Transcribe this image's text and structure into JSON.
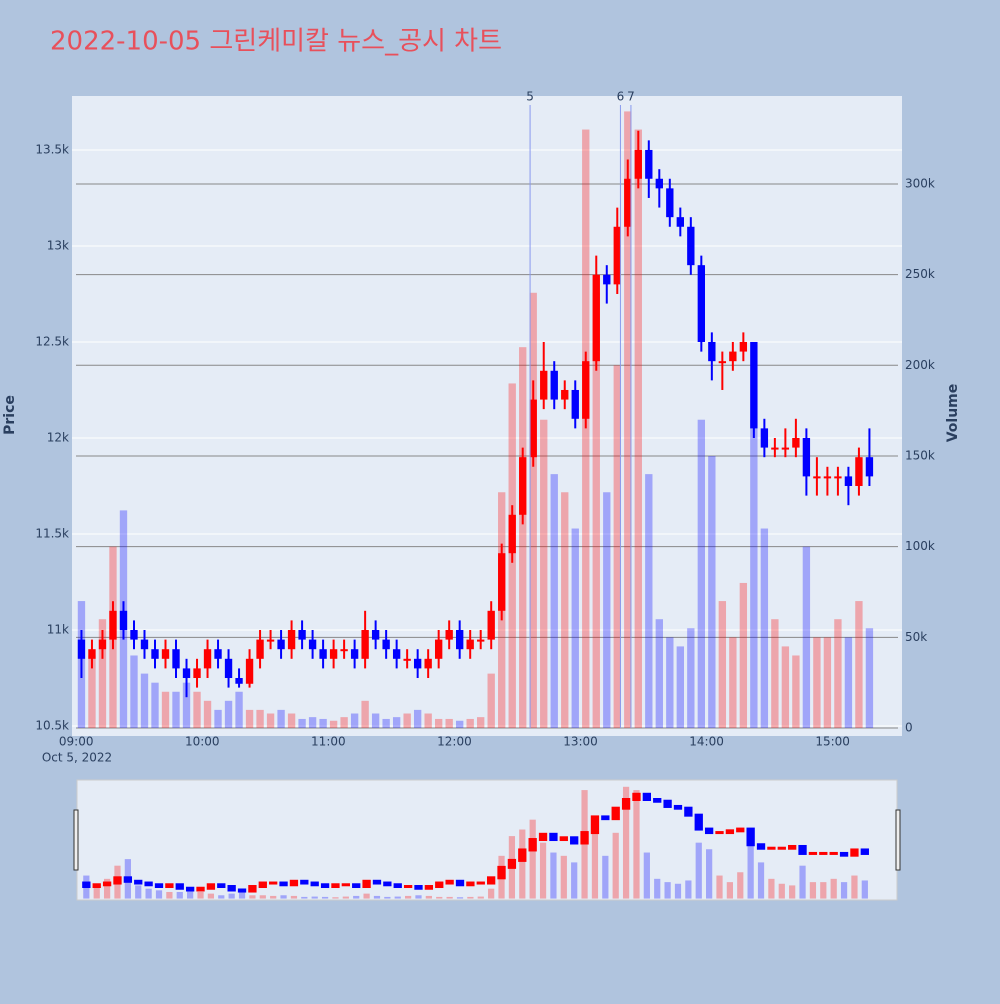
{
  "chart_data": {
    "type": "candlestick",
    "title": "2022-10-05 그린케미칼 뉴스_공시 차트",
    "y_label": "Price",
    "y2_label": "Volume",
    "x_sublabel": "Oct 5, 2022",
    "increasing_color": "#ff0000",
    "decreasing_color": "#0000ff",
    "title_color": "#e8505b",
    "x": [
      "09:00",
      "09:05",
      "09:10",
      "09:15",
      "09:20",
      "09:25",
      "09:30",
      "09:35",
      "09:40",
      "09:45",
      "09:50",
      "09:55",
      "10:00",
      "10:05",
      "10:10",
      "10:15",
      "10:20",
      "10:25",
      "10:30",
      "10:35",
      "10:40",
      "10:45",
      "10:50",
      "10:55",
      "11:00",
      "11:05",
      "11:10",
      "11:15",
      "11:20",
      "11:25",
      "11:30",
      "11:35",
      "11:40",
      "11:45",
      "11:50",
      "11:55",
      "12:00",
      "12:05",
      "12:10",
      "12:15",
      "12:20",
      "12:25",
      "12:30",
      "12:35",
      "12:40",
      "12:45",
      "12:50",
      "12:55",
      "13:00",
      "13:05",
      "13:10",
      "13:15",
      "13:20",
      "13:25",
      "13:30",
      "13:35",
      "13:40",
      "13:45",
      "13:50",
      "13:55",
      "14:00",
      "14:05",
      "14:10",
      "14:15",
      "14:20",
      "14:25",
      "14:30",
      "14:35",
      "14:40",
      "14:45",
      "14:50",
      "14:55",
      "15:00",
      "15:05",
      "15:10",
      "15:15"
    ],
    "open": [
      10950,
      10850,
      10900,
      10950,
      11100,
      11000,
      10950,
      10900,
      10850,
      10900,
      10800,
      10750,
      10800,
      10900,
      10850,
      10750,
      10720,
      10850,
      10950,
      10950,
      10900,
      11000,
      10950,
      10900,
      10850,
      10900,
      10900,
      10850,
      11000,
      10950,
      10900,
      10850,
      10850,
      10800,
      10850,
      10950,
      11000,
      10900,
      10950,
      10950,
      11100,
      11400,
      11600,
      11900,
      12200,
      12350,
      12200,
      12250,
      12100,
      12400,
      12850,
      12800,
      13100,
      13350,
      13500,
      13350,
      13300,
      13150,
      13100,
      12900,
      12500,
      12400,
      12400,
      12450,
      12500,
      12050,
      11950,
      11950,
      11950,
      12000,
      11800,
      11800,
      11800,
      11800,
      11750,
      11900
    ],
    "high": [
      11000,
      10950,
      11000,
      11150,
      11150,
      11050,
      11000,
      10950,
      10950,
      10950,
      10850,
      10850,
      10950,
      10950,
      10900,
      10800,
      10900,
      11000,
      11000,
      11000,
      11050,
      11050,
      11000,
      10950,
      10950,
      10950,
      10950,
      11100,
      11050,
      11000,
      10950,
      10900,
      10900,
      10900,
      11000,
      11050,
      11050,
      11000,
      11000,
      11150,
      11450,
      11650,
      11950,
      12300,
      12500,
      12400,
      12300,
      12300,
      12450,
      12950,
      12900,
      13200,
      13450,
      13600,
      13550,
      13400,
      13350,
      13200,
      13150,
      12950,
      12550,
      12450,
      12500,
      12550,
      12500,
      12100,
      12000,
      12050,
      12100,
      12050,
      11900,
      11850,
      11850,
      11850,
      11950,
      12050
    ],
    "low": [
      10750,
      10800,
      10850,
      10900,
      10950,
      10900,
      10850,
      10800,
      10800,
      10750,
      10650,
      10700,
      10750,
      10800,
      10700,
      10700,
      10700,
      10800,
      10900,
      10850,
      10850,
      10900,
      10850,
      10800,
      10800,
      10850,
      10800,
      10800,
      10900,
      10850,
      10800,
      10800,
      10750,
      10750,
      10800,
      10900,
      10850,
      10850,
      10900,
      10900,
      11050,
      11350,
      11550,
      11850,
      12150,
      12150,
      12150,
      12050,
      12050,
      12350,
      12700,
      12750,
      13050,
      13300,
      13250,
      13200,
      13100,
      13050,
      12850,
      12450,
      12300,
      12250,
      12350,
      12400,
      12000,
      11900,
      11900,
      11900,
      11900,
      11700,
      11700,
      11700,
      11700,
      11650,
      11700,
      11750
    ],
    "close": [
      10850,
      10900,
      10950,
      11100,
      11000,
      10950,
      10900,
      10850,
      10900,
      10800,
      10750,
      10800,
      10900,
      10850,
      10750,
      10720,
      10850,
      10950,
      10950,
      10900,
      11000,
      10950,
      10900,
      10850,
      10900,
      10900,
      10850,
      11000,
      10950,
      10900,
      10850,
      10850,
      10800,
      10850,
      10950,
      11000,
      10900,
      10950,
      10950,
      11100,
      11400,
      11600,
      11900,
      12200,
      12350,
      12200,
      12250,
      12100,
      12400,
      12850,
      12800,
      13100,
      13350,
      13500,
      13350,
      13300,
      13150,
      13100,
      12900,
      12500,
      12400,
      12400,
      12450,
      12500,
      12050,
      11950,
      11950,
      11950,
      12000,
      11800,
      11800,
      11800,
      11800,
      11750,
      11900,
      11800
    ],
    "volume": [
      70000,
      40000,
      60000,
      100000,
      120000,
      40000,
      30000,
      25000,
      20000,
      20000,
      25000,
      20000,
      15000,
      10000,
      15000,
      20000,
      10000,
      10000,
      8000,
      10000,
      8000,
      5000,
      6000,
      5000,
      4000,
      6000,
      8000,
      15000,
      8000,
      5000,
      6000,
      8000,
      10000,
      8000,
      5000,
      5000,
      4000,
      5000,
      6000,
      30000,
      130000,
      190000,
      210000,
      240000,
      170000,
      140000,
      130000,
      110000,
      330000,
      240000,
      130000,
      200000,
      340000,
      330000,
      140000,
      60000,
      50000,
      45000,
      55000,
      170000,
      150000,
      70000,
      50000,
      80000,
      170000,
      110000,
      60000,
      45000,
      40000,
      100000,
      50000,
      50000,
      60000,
      50000,
      70000,
      55000
    ],
    "xlim": [
      "08:58",
      "15:33"
    ],
    "xticks": [
      "09:00",
      "10:00",
      "11:00",
      "12:00",
      "13:00",
      "14:00",
      "15:00"
    ],
    "ylim": [
      10448,
      13781
    ],
    "yticks": [
      {
        "value": 10500,
        "label": "10.5k"
      },
      {
        "value": 11000,
        "label": "11k"
      },
      {
        "value": 11500,
        "label": "11.5k"
      },
      {
        "value": 12000,
        "label": "12k"
      },
      {
        "value": 12500,
        "label": "12.5k"
      },
      {
        "value": 13000,
        "label": "13k"
      },
      {
        "value": 13500,
        "label": "13.5k"
      }
    ],
    "y2lim": [
      -4400,
      348500
    ],
    "y2ticks": [
      0,
      {
        "value": 50000,
        "label": "50k"
      },
      {
        "value": 100000,
        "label": "100k"
      },
      {
        "value": 150000,
        "label": "150k"
      },
      {
        "value": 200000,
        "label": "200k"
      },
      {
        "value": 250000,
        "label": "250k"
      },
      {
        "value": 300000,
        "label": "300k"
      }
    ],
    "annotations": [
      {
        "x": "12:36",
        "text": "5"
      },
      {
        "x": "13:19",
        "text": "6"
      },
      {
        "x": "13:24",
        "text": "7"
      }
    ],
    "grid": true,
    "range_slider": true
  }
}
